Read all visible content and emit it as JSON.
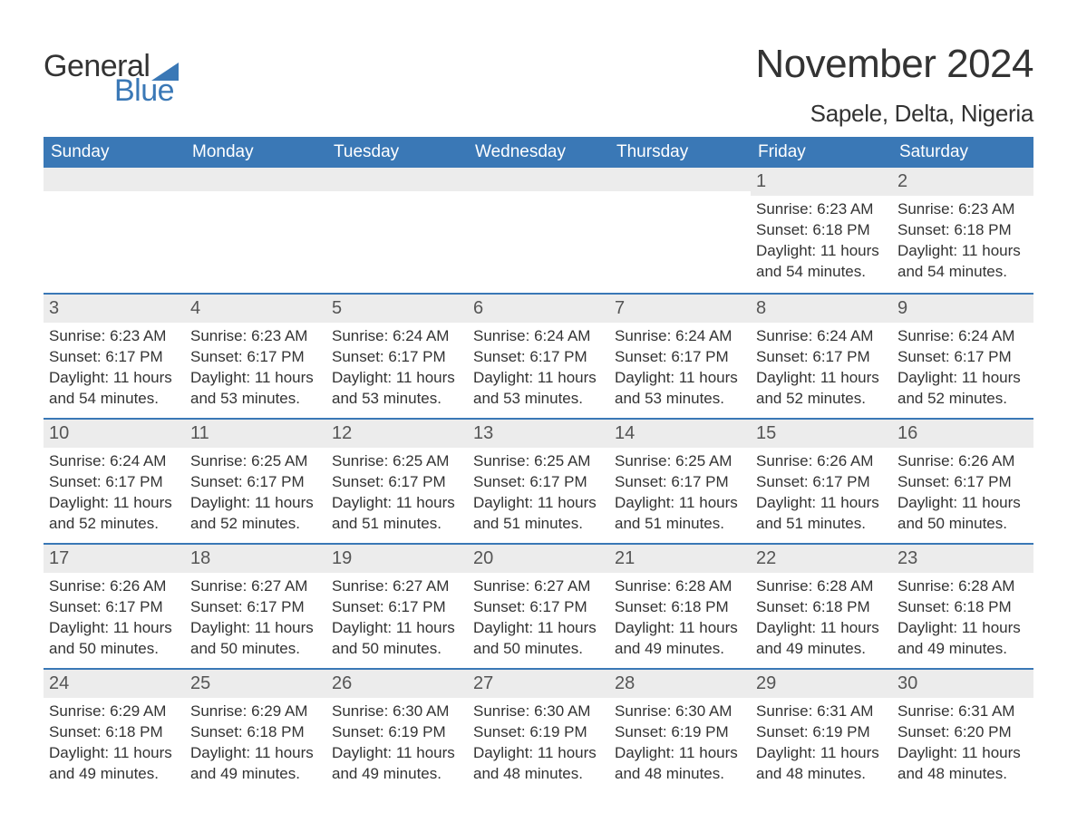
{
  "logo": {
    "word1": "General",
    "word2": "Blue",
    "text_color": "#333333",
    "accent_color": "#3a78b6"
  },
  "title": "November 2024",
  "location": "Sapele, Delta, Nigeria",
  "colors": {
    "header_bg": "#3a78b6",
    "header_text": "#ffffff",
    "daynum_bg": "#ececec",
    "row_border": "#3a78b6",
    "body_text": "#333333",
    "page_bg": "#ffffff"
  },
  "typography": {
    "title_fontsize": 44,
    "location_fontsize": 26,
    "header_fontsize": 19,
    "daynum_fontsize": 20,
    "body_fontsize": 17
  },
  "day_headers": [
    "Sunday",
    "Monday",
    "Tuesday",
    "Wednesday",
    "Thursday",
    "Friday",
    "Saturday"
  ],
  "weeks": [
    [
      {
        "empty": true
      },
      {
        "empty": true
      },
      {
        "empty": true
      },
      {
        "empty": true
      },
      {
        "empty": true
      },
      {
        "day": "1",
        "sunrise": "Sunrise: 6:23 AM",
        "sunset": "Sunset: 6:18 PM",
        "daylight": "Daylight: 11 hours and 54 minutes."
      },
      {
        "day": "2",
        "sunrise": "Sunrise: 6:23 AM",
        "sunset": "Sunset: 6:18 PM",
        "daylight": "Daylight: 11 hours and 54 minutes."
      }
    ],
    [
      {
        "day": "3",
        "sunrise": "Sunrise: 6:23 AM",
        "sunset": "Sunset: 6:17 PM",
        "daylight": "Daylight: 11 hours and 54 minutes."
      },
      {
        "day": "4",
        "sunrise": "Sunrise: 6:23 AM",
        "sunset": "Sunset: 6:17 PM",
        "daylight": "Daylight: 11 hours and 53 minutes."
      },
      {
        "day": "5",
        "sunrise": "Sunrise: 6:24 AM",
        "sunset": "Sunset: 6:17 PM",
        "daylight": "Daylight: 11 hours and 53 minutes."
      },
      {
        "day": "6",
        "sunrise": "Sunrise: 6:24 AM",
        "sunset": "Sunset: 6:17 PM",
        "daylight": "Daylight: 11 hours and 53 minutes."
      },
      {
        "day": "7",
        "sunrise": "Sunrise: 6:24 AM",
        "sunset": "Sunset: 6:17 PM",
        "daylight": "Daylight: 11 hours and 53 minutes."
      },
      {
        "day": "8",
        "sunrise": "Sunrise: 6:24 AM",
        "sunset": "Sunset: 6:17 PM",
        "daylight": "Daylight: 11 hours and 52 minutes."
      },
      {
        "day": "9",
        "sunrise": "Sunrise: 6:24 AM",
        "sunset": "Sunset: 6:17 PM",
        "daylight": "Daylight: 11 hours and 52 minutes."
      }
    ],
    [
      {
        "day": "10",
        "sunrise": "Sunrise: 6:24 AM",
        "sunset": "Sunset: 6:17 PM",
        "daylight": "Daylight: 11 hours and 52 minutes."
      },
      {
        "day": "11",
        "sunrise": "Sunrise: 6:25 AM",
        "sunset": "Sunset: 6:17 PM",
        "daylight": "Daylight: 11 hours and 52 minutes."
      },
      {
        "day": "12",
        "sunrise": "Sunrise: 6:25 AM",
        "sunset": "Sunset: 6:17 PM",
        "daylight": "Daylight: 11 hours and 51 minutes."
      },
      {
        "day": "13",
        "sunrise": "Sunrise: 6:25 AM",
        "sunset": "Sunset: 6:17 PM",
        "daylight": "Daylight: 11 hours and 51 minutes."
      },
      {
        "day": "14",
        "sunrise": "Sunrise: 6:25 AM",
        "sunset": "Sunset: 6:17 PM",
        "daylight": "Daylight: 11 hours and 51 minutes."
      },
      {
        "day": "15",
        "sunrise": "Sunrise: 6:26 AM",
        "sunset": "Sunset: 6:17 PM",
        "daylight": "Daylight: 11 hours and 51 minutes."
      },
      {
        "day": "16",
        "sunrise": "Sunrise: 6:26 AM",
        "sunset": "Sunset: 6:17 PM",
        "daylight": "Daylight: 11 hours and 50 minutes."
      }
    ],
    [
      {
        "day": "17",
        "sunrise": "Sunrise: 6:26 AM",
        "sunset": "Sunset: 6:17 PM",
        "daylight": "Daylight: 11 hours and 50 minutes."
      },
      {
        "day": "18",
        "sunrise": "Sunrise: 6:27 AM",
        "sunset": "Sunset: 6:17 PM",
        "daylight": "Daylight: 11 hours and 50 minutes."
      },
      {
        "day": "19",
        "sunrise": "Sunrise: 6:27 AM",
        "sunset": "Sunset: 6:17 PM",
        "daylight": "Daylight: 11 hours and 50 minutes."
      },
      {
        "day": "20",
        "sunrise": "Sunrise: 6:27 AM",
        "sunset": "Sunset: 6:17 PM",
        "daylight": "Daylight: 11 hours and 50 minutes."
      },
      {
        "day": "21",
        "sunrise": "Sunrise: 6:28 AM",
        "sunset": "Sunset: 6:18 PM",
        "daylight": "Daylight: 11 hours and 49 minutes."
      },
      {
        "day": "22",
        "sunrise": "Sunrise: 6:28 AM",
        "sunset": "Sunset: 6:18 PM",
        "daylight": "Daylight: 11 hours and 49 minutes."
      },
      {
        "day": "23",
        "sunrise": "Sunrise: 6:28 AM",
        "sunset": "Sunset: 6:18 PM",
        "daylight": "Daylight: 11 hours and 49 minutes."
      }
    ],
    [
      {
        "day": "24",
        "sunrise": "Sunrise: 6:29 AM",
        "sunset": "Sunset: 6:18 PM",
        "daylight": "Daylight: 11 hours and 49 minutes."
      },
      {
        "day": "25",
        "sunrise": "Sunrise: 6:29 AM",
        "sunset": "Sunset: 6:18 PM",
        "daylight": "Daylight: 11 hours and 49 minutes."
      },
      {
        "day": "26",
        "sunrise": "Sunrise: 6:30 AM",
        "sunset": "Sunset: 6:19 PM",
        "daylight": "Daylight: 11 hours and 49 minutes."
      },
      {
        "day": "27",
        "sunrise": "Sunrise: 6:30 AM",
        "sunset": "Sunset: 6:19 PM",
        "daylight": "Daylight: 11 hours and 48 minutes."
      },
      {
        "day": "28",
        "sunrise": "Sunrise: 6:30 AM",
        "sunset": "Sunset: 6:19 PM",
        "daylight": "Daylight: 11 hours and 48 minutes."
      },
      {
        "day": "29",
        "sunrise": "Sunrise: 6:31 AM",
        "sunset": "Sunset: 6:19 PM",
        "daylight": "Daylight: 11 hours and 48 minutes."
      },
      {
        "day": "30",
        "sunrise": "Sunrise: 6:31 AM",
        "sunset": "Sunset: 6:20 PM",
        "daylight": "Daylight: 11 hours and 48 minutes."
      }
    ]
  ]
}
